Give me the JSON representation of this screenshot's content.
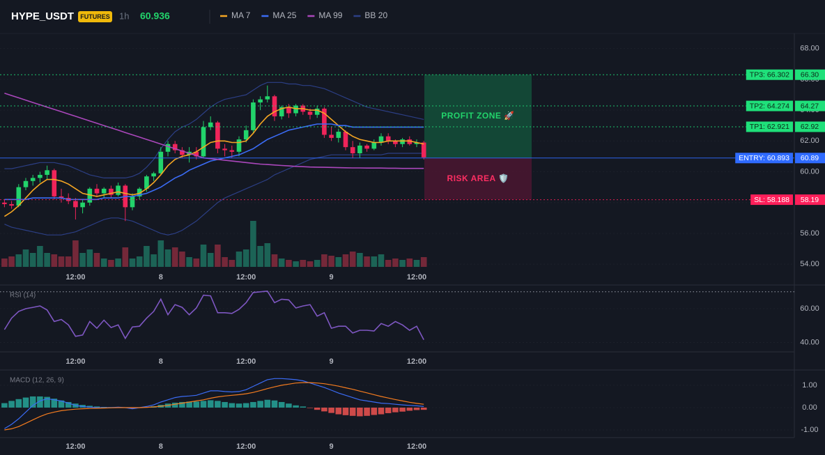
{
  "header": {
    "symbol": "HYPE_USDT",
    "badge": "FUTURES",
    "interval": "1h",
    "last_price": 60.936
  },
  "chart_data": [
    {
      "type": "candlestick",
      "categories": [
        null,
        null,
        null,
        null,
        null,
        null,
        null,
        null,
        null,
        null,
        "12:00",
        null,
        null,
        null,
        null,
        null,
        null,
        null,
        null,
        null,
        null,
        null,
        "8",
        null,
        null,
        null,
        null,
        null,
        null,
        null,
        null,
        null,
        null,
        null,
        "12:00",
        null,
        null,
        null,
        null,
        null,
        null,
        null,
        null,
        null,
        null,
        null,
        "9",
        null,
        null,
        null,
        null,
        null,
        null,
        null,
        null,
        null,
        null,
        null,
        "12:00",
        null
      ],
      "open": [
        58.0,
        57.9,
        57.8,
        59.0,
        59.4,
        59.6,
        59.8,
        60.1,
        58.4,
        58.3,
        58.1,
        57.7,
        58.0,
        58.9,
        58.6,
        58.9,
        58.5,
        59.1,
        57.7,
        58.4,
        58.9,
        59.7,
        59.9,
        61.3,
        61.8,
        61.4,
        61.1,
        61.3,
        61.0,
        62.9,
        63.2,
        61.5,
        61.4,
        61.3,
        62.1,
        62.7,
        64.5,
        64.7,
        64.9,
        63.6,
        64.2,
        63.8,
        64.3,
        63.9,
        63.7,
        64.1,
        62.4,
        62.2,
        62.6,
        61.6,
        61.2,
        61.7,
        61.5,
        61.9,
        62.3,
        62.0,
        61.8,
        62.1,
        61.8,
        61.9
      ],
      "high": [
        58.2,
        58.1,
        59.2,
        59.6,
        59.8,
        60.0,
        60.4,
        60.2,
        58.9,
        58.6,
        58.3,
        58.2,
        59.0,
        59.2,
        59.0,
        59.1,
        59.3,
        59.2,
        58.6,
        59.0,
        59.8,
        60.0,
        61.6,
        62.0,
        62.0,
        61.6,
        61.6,
        61.6,
        63.3,
        63.6,
        63.3,
        61.8,
        61.7,
        62.3,
        63.0,
        64.7,
        64.9,
        65.6,
        65.0,
        64.3,
        64.4,
        64.4,
        64.4,
        64.1,
        64.3,
        64.2,
        62.9,
        62.8,
        62.7,
        62.0,
        61.9,
        61.8,
        62.1,
        62.5,
        62.5,
        62.1,
        62.2,
        62.3,
        62.1,
        62.0
      ],
      "low": [
        57.7,
        57.6,
        57.7,
        58.8,
        59.1,
        59.3,
        59.5,
        58.2,
        58.0,
        57.9,
        56.9,
        57.3,
        57.8,
        58.4,
        58.3,
        58.3,
        58.4,
        56.8,
        57.5,
        58.2,
        58.7,
        59.4,
        59.8,
        61.0,
        61.2,
        60.9,
        60.6,
        60.8,
        60.9,
        62.7,
        61.2,
        61.0,
        60.9,
        61.0,
        61.9,
        62.5,
        64.0,
        64.5,
        63.3,
        63.4,
        63.5,
        63.6,
        63.7,
        63.4,
        63.5,
        62.2,
        62.0,
        61.9,
        61.4,
        60.9,
        60.9,
        61.3,
        61.4,
        61.7,
        61.8,
        61.6,
        61.6,
        61.7,
        61.6,
        60.8
      ],
      "close": [
        57.9,
        57.8,
        59.0,
        59.4,
        59.6,
        59.8,
        60.1,
        58.4,
        58.3,
        58.1,
        57.7,
        58.0,
        58.9,
        58.6,
        58.9,
        58.5,
        59.1,
        57.7,
        58.4,
        58.9,
        59.7,
        59.9,
        61.3,
        61.8,
        61.4,
        61.1,
        61.3,
        61.0,
        62.9,
        63.2,
        61.5,
        61.4,
        61.3,
        62.1,
        62.7,
        64.5,
        64.7,
        64.9,
        63.6,
        64.2,
        63.8,
        64.3,
        63.9,
        63.7,
        64.1,
        62.4,
        62.2,
        62.6,
        61.6,
        61.2,
        61.7,
        61.5,
        61.9,
        62.3,
        62.0,
        61.8,
        62.1,
        61.8,
        61.9,
        60.936
      ],
      "volume": [
        12,
        15,
        18,
        25,
        20,
        30,
        20,
        18,
        15,
        15,
        38,
        20,
        25,
        20,
        12,
        10,
        12,
        28,
        12,
        15,
        30,
        18,
        38,
        25,
        28,
        22,
        14,
        12,
        32,
        20,
        32,
        14,
        10,
        22,
        25,
        66,
        30,
        34,
        18,
        12,
        10,
        8,
        10,
        8,
        10,
        18,
        16,
        14,
        18,
        22,
        20,
        15,
        15,
        18,
        10,
        12,
        10,
        12,
        10,
        14
      ],
      "up_color": "#22d46b",
      "down_color": "#f0245a",
      "series": [
        {
          "name": "MA 7",
          "color": "#f5a623",
          "values": [
            57.1,
            57.4,
            57.8,
            58.3,
            58.8,
            59.2,
            59.5,
            59.5,
            59.4,
            59.2,
            58.9,
            58.6,
            58.5,
            58.4,
            58.5,
            58.6,
            58.7,
            58.6,
            58.5,
            58.6,
            58.9,
            59.3,
            59.8,
            60.4,
            60.8,
            61.0,
            61.1,
            61.3,
            61.6,
            61.9,
            62.0,
            62.0,
            61.9,
            61.9,
            62.0,
            62.5,
            63.1,
            63.6,
            63.9,
            64.1,
            64.2,
            64.1,
            64.1,
            64.0,
            64.0,
            63.8,
            63.4,
            63.0,
            62.6,
            62.3,
            62.1,
            62.0,
            61.9,
            61.9,
            62.0,
            62.0,
            62.0,
            62.0,
            61.9,
            61.8
          ]
        },
        {
          "name": "MA 25",
          "color": "#3b6cf6",
          "values": [
            58.2,
            58.2,
            58.2,
            58.2,
            58.3,
            58.3,
            58.3,
            58.3,
            58.3,
            58.2,
            58.2,
            58.2,
            58.2,
            58.2,
            58.3,
            58.3,
            58.3,
            58.4,
            58.4,
            58.5,
            58.6,
            58.8,
            59.0,
            59.3,
            59.6,
            59.8,
            60.1,
            60.3,
            60.5,
            60.7,
            60.8,
            60.9,
            61.0,
            61.1,
            61.3,
            61.5,
            61.8,
            62.1,
            62.3,
            62.5,
            62.7,
            62.8,
            62.9,
            63.0,
            63.1,
            63.1,
            63.1,
            63.0,
            63.0,
            62.9,
            62.9,
            62.9,
            62.9,
            62.9,
            62.9,
            62.9,
            62.9,
            62.9,
            62.9,
            62.9
          ]
        },
        {
          "name": "MA 99",
          "color": "#ab47bc",
          "values": [
            65.1,
            64.95,
            64.8,
            64.65,
            64.5,
            64.35,
            64.2,
            64.05,
            63.9,
            63.75,
            63.6,
            63.45,
            63.3,
            63.15,
            63.0,
            62.85,
            62.7,
            62.55,
            62.4,
            62.25,
            62.1,
            61.95,
            61.8,
            61.65,
            61.5,
            61.35,
            61.2,
            61.05,
            60.9,
            60.85,
            60.8,
            60.75,
            60.7,
            60.65,
            60.6,
            60.55,
            60.5,
            60.47,
            60.44,
            60.41,
            60.38,
            60.35,
            60.33,
            60.31,
            60.3,
            60.29,
            60.28,
            60.27,
            60.26,
            60.25,
            60.25,
            60.24,
            60.24,
            60.24,
            60.23,
            60.23,
            60.22,
            60.22,
            60.22,
            60.22
          ]
        },
        {
          "name": "BB 20",
          "color": "#2c3f86",
          "upper": [
            60.2,
            60.2,
            60.3,
            60.4,
            60.5,
            60.6,
            60.6,
            60.6,
            60.5,
            60.4,
            60.2,
            60.0,
            59.8,
            59.7,
            59.6,
            59.6,
            59.6,
            59.6,
            59.7,
            59.9,
            60.3,
            60.8,
            61.5,
            62.1,
            62.6,
            62.9,
            63.1,
            63.4,
            63.8,
            64.2,
            64.5,
            64.7,
            64.8,
            64.9,
            65.0,
            65.3,
            65.6,
            65.8,
            65.8,
            65.8,
            65.7,
            65.7,
            65.6,
            65.6,
            65.5,
            65.4,
            65.2,
            65.0,
            64.8,
            64.6,
            64.4,
            64.2,
            64.1,
            64.0,
            63.9,
            63.8,
            63.7,
            63.6,
            63.5,
            63.4
          ],
          "lower": [
            56.6,
            56.4,
            56.3,
            56.2,
            56.1,
            56.0,
            55.9,
            55.9,
            55.9,
            56.0,
            56.1,
            56.3,
            56.5,
            56.7,
            56.9,
            57.0,
            57.0,
            56.9,
            56.8,
            56.6,
            56.4,
            56.2,
            56.0,
            55.9,
            56.0,
            56.2,
            56.5,
            56.8,
            57.2,
            57.6,
            58.0,
            58.3,
            58.5,
            58.7,
            58.9,
            59.1,
            59.3,
            59.5,
            59.8,
            60.0,
            60.2,
            60.4,
            60.6,
            60.8,
            60.9,
            61.0,
            61.1,
            61.1,
            61.1,
            61.1,
            61.1,
            61.1,
            61.1,
            61.1,
            61.2,
            61.2,
            61.2,
            61.2,
            61.2,
            61.2
          ]
        }
      ],
      "ylim": [
        53.6,
        68.8
      ],
      "yticks": [
        {
          "value": 54,
          "label": "54.00"
        },
        {
          "value": 56,
          "label": "56.00"
        },
        {
          "value": 58,
          "label": "58.00"
        },
        {
          "value": 60,
          "label": "60.00"
        },
        {
          "value": 62,
          "label": "62.00"
        },
        {
          "value": 64,
          "label": "64.00"
        },
        {
          "value": 66,
          "label": "66.00"
        },
        {
          "value": 68,
          "label": "68.00"
        }
      ],
      "levels": [
        {
          "value": 66.302,
          "label": "TP3: 66.302",
          "axis_label": "66.30",
          "color": "#1fe07a",
          "dashed": true
        },
        {
          "value": 64.274,
          "label": "TP2: 64.274",
          "axis_label": "64.27",
          "color": "#1fe07a",
          "dashed": true
        },
        {
          "value": 62.921,
          "label": "TP1: 62.921",
          "axis_label": "62.92",
          "color": "#1fe07a",
          "dashed": true
        },
        {
          "value": 60.893,
          "label": "ENTRY: 60.893",
          "axis_label": "60.89",
          "color": "#2f6bff",
          "dashed": false
        },
        {
          "value": 58.188,
          "label": "SL: 58.188",
          "axis_label": "58.19",
          "color": "#ff1f5a",
          "dashed": true
        }
      ],
      "zones": [
        {
          "label": "PROFIT ZONE 🚀",
          "top": 66.302,
          "bottom": 60.893,
          "color": "#13503a",
          "text_color": "#22d46b"
        },
        {
          "label": "RISK AREA 🛡️",
          "top": 60.893,
          "bottom": 58.188,
          "color": "#4a1630",
          "text_color": "#ff2e63"
        }
      ]
    },
    {
      "type": "line",
      "title": "RSI (14)",
      "categories": [
        null,
        null,
        null,
        null,
        null,
        null,
        null,
        null,
        null,
        null,
        "12:00",
        null,
        null,
        null,
        null,
        null,
        null,
        null,
        null,
        null,
        null,
        null,
        "8",
        null,
        null,
        null,
        null,
        null,
        null,
        null,
        null,
        null,
        null,
        null,
        "12:00",
        null,
        null,
        null,
        null,
        null,
        null,
        null,
        null,
        null,
        null,
        null,
        "9",
        null,
        null,
        null,
        null,
        null,
        null,
        null,
        null,
        null,
        null,
        null,
        "12:00",
        null
      ],
      "values": [
        47.6,
        54.4,
        58.4,
        60,
        60.8,
        61.6,
        59.2,
        52.4,
        53.6,
        50.4,
        43.6,
        44.4,
        52.4,
        48.4,
        53.2,
        48.8,
        50.4,
        42.4,
        49.2,
        49.6,
        54.4,
        58.4,
        65.6,
        56.4,
        62.4,
        60.8,
        56.4,
        60.4,
        68,
        67.6,
        57.6,
        57.6,
        57.2,
        59.6,
        63.6,
        69.6,
        70,
        70.4,
        63.6,
        65.6,
        65.2,
        60.4,
        61.6,
        62.4,
        55.6,
        57.6,
        48.4,
        49.6,
        49.6,
        45.6,
        47.2,
        47.2,
        46.8,
        51.2,
        49.6,
        52.4,
        50.4,
        47.2,
        49.6,
        41.6
      ],
      "color": "#7e57c2",
      "overbought": 70,
      "ylim": [
        34.4,
        72.8
      ],
      "yticks": [
        {
          "value": 40,
          "label": "40.00"
        },
        {
          "value": 60,
          "label": "60.00"
        }
      ]
    },
    {
      "type": "macd",
      "title": "MACD (12, 26, 9)",
      "categories": [
        null,
        null,
        null,
        null,
        null,
        null,
        null,
        null,
        null,
        null,
        "12:00",
        null,
        null,
        null,
        null,
        null,
        null,
        null,
        null,
        null,
        null,
        null,
        "8",
        null,
        null,
        null,
        null,
        null,
        null,
        null,
        null,
        null,
        null,
        null,
        "12:00",
        null,
        null,
        null,
        null,
        null,
        null,
        null,
        null,
        null,
        null,
        null,
        "9",
        null,
        null,
        null,
        null,
        null,
        null,
        null,
        null,
        null,
        null,
        null,
        "12:00",
        null
      ],
      "macd": [
        -0.94,
        -0.75,
        -0.5,
        -0.2,
        0.1,
        0.3,
        0.4,
        0.35,
        0.3,
        0.2,
        0.1,
        0.05,
        0.02,
        0.0,
        0.0,
        0.0,
        0.02,
        0.0,
        -0.05,
        0.0,
        0.05,
        0.12,
        0.25,
        0.35,
        0.45,
        0.5,
        0.52,
        0.55,
        0.65,
        0.75,
        0.75,
        0.72,
        0.7,
        0.72,
        0.8,
        0.95,
        1.1,
        1.25,
        1.3,
        1.3,
        1.28,
        1.25,
        1.2,
        1.1,
        1.0,
        0.9,
        0.78,
        0.65,
        0.55,
        0.45,
        0.35,
        0.3,
        0.25,
        0.2,
        0.18,
        0.15,
        0.12,
        0.1,
        0.08,
        0.05
      ],
      "signal": [
        -1.0,
        -0.95,
        -0.85,
        -0.7,
        -0.55,
        -0.4,
        -0.28,
        -0.2,
        -0.14,
        -0.1,
        -0.07,
        -0.05,
        -0.04,
        -0.03,
        -0.02,
        -0.01,
        0.0,
        0.0,
        0.0,
        0.0,
        0.01,
        0.03,
        0.06,
        0.1,
        0.15,
        0.2,
        0.25,
        0.3,
        0.35,
        0.42,
        0.48,
        0.52,
        0.55,
        0.58,
        0.62,
        0.68,
        0.76,
        0.85,
        0.93,
        1.0,
        1.05,
        1.1,
        1.12,
        1.12,
        1.1,
        1.07,
        1.02,
        0.96,
        0.89,
        0.82,
        0.74,
        0.66,
        0.58,
        0.5,
        0.43,
        0.36,
        0.3,
        0.24,
        0.19,
        0.15
      ],
      "histogram": [
        0.2,
        0.3,
        0.38,
        0.45,
        0.5,
        0.5,
        0.48,
        0.4,
        0.32,
        0.25,
        0.18,
        0.12,
        0.08,
        0.05,
        0.03,
        0.02,
        0.02,
        0.0,
        -0.03,
        -0.02,
        0.02,
        0.06,
        0.12,
        0.18,
        0.22,
        0.25,
        0.27,
        0.27,
        0.3,
        0.33,
        0.3,
        0.25,
        0.2,
        0.18,
        0.2,
        0.25,
        0.3,
        0.35,
        0.32,
        0.25,
        0.18,
        0.1,
        0.05,
        -0.02,
        -0.1,
        -0.17,
        -0.24,
        -0.3,
        -0.34,
        -0.37,
        -0.39,
        -0.37,
        -0.33,
        -0.3,
        -0.25,
        -0.21,
        -0.18,
        -0.14,
        -0.11,
        -0.1
      ],
      "macd_color": "#3b6cf6",
      "signal_color": "#f57c1f",
      "up_color": "#26a69a",
      "down_color": "#ef5350",
      "ylim": [
        -1.25,
        1.56
      ],
      "yticks": [
        {
          "value": -1,
          "label": "-1.00"
        },
        {
          "value": 0,
          "label": "0.00"
        },
        {
          "value": 1,
          "label": "1.00"
        }
      ]
    }
  ]
}
